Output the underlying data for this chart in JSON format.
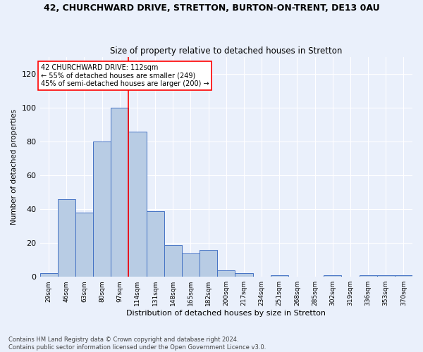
{
  "title": "42, CHURCHWARD DRIVE, STRETTON, BURTON-ON-TRENT, DE13 0AU",
  "subtitle": "Size of property relative to detached houses in Stretton",
  "xlabel": "Distribution of detached houses by size in Stretton",
  "ylabel": "Number of detached properties",
  "bin_labels": [
    "29sqm",
    "46sqm",
    "63sqm",
    "80sqm",
    "97sqm",
    "114sqm",
    "131sqm",
    "148sqm",
    "165sqm",
    "182sqm",
    "200sqm",
    "217sqm",
    "234sqm",
    "251sqm",
    "268sqm",
    "285sqm",
    "302sqm",
    "319sqm",
    "336sqm",
    "353sqm",
    "370sqm"
  ],
  "bar_heights": [
    2,
    46,
    38,
    80,
    100,
    86,
    39,
    19,
    14,
    16,
    4,
    2,
    0,
    1,
    0,
    0,
    1,
    0,
    1,
    1,
    1
  ],
  "bar_color": "#b8cce4",
  "bar_edge_color": "#4472c4",
  "ylim": [
    0,
    130
  ],
  "yticks": [
    0,
    20,
    40,
    60,
    80,
    100,
    120
  ],
  "vline_x": 4.5,
  "annotation_line1": "42 CHURCHWARD DRIVE: 112sqm",
  "annotation_line2": "← 55% of detached houses are smaller (249)",
  "annotation_line3": "45% of semi-detached houses are larger (200) →",
  "footer_line1": "Contains HM Land Registry data © Crown copyright and database right 2024.",
  "footer_line2": "Contains public sector information licensed under the Open Government Licence v3.0.",
  "bg_color": "#eaf0fb",
  "grid_color": "#ffffff"
}
